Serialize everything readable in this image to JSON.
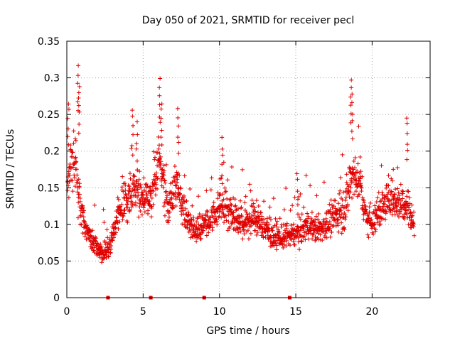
{
  "chart_data": {
    "type": "scatter",
    "title": "Day 050 of 2021, SRMTID for receiver pecl",
    "xlabel": "GPS time / hours",
    "ylabel": "SRMTID / TECUs",
    "xlim": [
      0,
      23.8
    ],
    "ylim": [
      0,
      0.35
    ],
    "x_ticks": [
      0,
      5,
      10,
      15,
      20
    ],
    "x_tick_labels": [
      "0",
      "5",
      "10",
      "15",
      "20"
    ],
    "y_ticks": [
      0,
      0.05,
      0.1,
      0.15,
      0.2,
      0.25,
      0.3,
      0.35
    ],
    "y_tick_labels": [
      "0",
      "0.05",
      "0.1",
      "0.15",
      "0.2",
      "0.25",
      "0.3",
      "0.35"
    ],
    "grid": true,
    "marker": "+",
    "color": "#e00000",
    "series": [
      {
        "name": "SRMTID",
        "trend": [
          [
            0.0,
            0.13
          ],
          [
            0.3,
            0.2
          ],
          [
            0.6,
            0.17
          ],
          [
            0.9,
            0.12
          ],
          [
            1.3,
            0.09
          ],
          [
            1.8,
            0.07
          ],
          [
            2.4,
            0.06
          ],
          [
            2.9,
            0.075
          ],
          [
            3.4,
            0.12
          ],
          [
            3.9,
            0.13
          ],
          [
            4.4,
            0.15
          ],
          [
            5.0,
            0.13
          ],
          [
            5.6,
            0.14
          ],
          [
            6.1,
            0.19
          ],
          [
            6.6,
            0.12
          ],
          [
            7.2,
            0.16
          ],
          [
            7.8,
            0.11
          ],
          [
            8.4,
            0.09
          ],
          [
            9.0,
            0.1
          ],
          [
            9.6,
            0.11
          ],
          [
            10.2,
            0.13
          ],
          [
            10.8,
            0.115
          ],
          [
            11.5,
            0.1
          ],
          [
            12.2,
            0.11
          ],
          [
            12.8,
            0.1
          ],
          [
            13.4,
            0.085
          ],
          [
            14.0,
            0.08
          ],
          [
            14.6,
            0.085
          ],
          [
            15.2,
            0.09
          ],
          [
            15.8,
            0.1
          ],
          [
            16.4,
            0.09
          ],
          [
            17.0,
            0.1
          ],
          [
            17.6,
            0.11
          ],
          [
            18.2,
            0.12
          ],
          [
            18.7,
            0.17
          ],
          [
            19.2,
            0.16
          ],
          [
            19.6,
            0.11
          ],
          [
            20.1,
            0.105
          ],
          [
            20.6,
            0.12
          ],
          [
            21.2,
            0.14
          ],
          [
            21.8,
            0.13
          ],
          [
            22.3,
            0.13
          ],
          [
            22.7,
            0.1
          ]
        ],
        "spikes": [
          [
            0.1,
            0.27
          ],
          [
            0.75,
            0.32
          ],
          [
            0.8,
            0.29
          ],
          [
            4.3,
            0.26
          ],
          [
            4.6,
            0.24
          ],
          [
            6.1,
            0.3
          ],
          [
            6.2,
            0.27
          ],
          [
            7.3,
            0.26
          ],
          [
            10.2,
            0.22
          ],
          [
            15.1,
            0.175
          ],
          [
            18.6,
            0.3
          ],
          [
            18.7,
            0.28
          ],
          [
            22.3,
            0.25
          ]
        ]
      }
    ],
    "gap_markers_x": [
      2.7,
      5.5,
      9.0,
      14.6
    ]
  }
}
